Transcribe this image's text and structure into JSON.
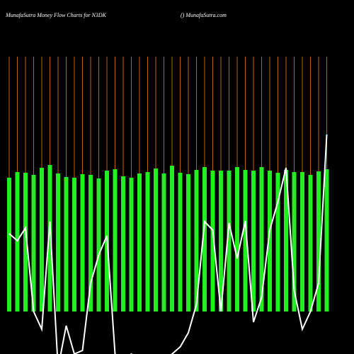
{
  "chart_data": {
    "type": "bar-line",
    "title": "MunafaSutra  Money Flow  Charts for N3DK",
    "subtitle": "() MunafaSutra.com",
    "categories": [
      null,
      null,
      null,
      null,
      null,
      null,
      null,
      null,
      null,
      null,
      null,
      null,
      null,
      null,
      null,
      null,
      null,
      null,
      null,
      null,
      null,
      null,
      null,
      null,
      null,
      null,
      null,
      null,
      null,
      null,
      null,
      null,
      null,
      null,
      null,
      null,
      null,
      null,
      null,
      null
    ],
    "ylim": [
      -60,
      360
    ],
    "series": [
      {
        "type": "bar",
        "color": "#22ee22",
        "values": [
          189,
          197,
          196,
          193,
          203,
          207,
          195,
          190,
          189,
          194,
          193,
          188,
          199,
          201,
          191,
          189,
          195,
          197,
          202,
          195,
          206,
          196,
          194,
          200,
          204,
          199,
          199,
          199,
          204,
          200,
          199,
          204,
          199,
          196,
          200,
          197,
          197,
          193,
          198,
          201
        ]
      },
      {
        "type": "line",
        "color": "#ffffff",
        "values": [
          110,
          100,
          118,
          0,
          -25,
          127,
          -80,
          -20,
          -60,
          -55,
          40,
          80,
          107,
          -60,
          -70,
          -60,
          -70,
          -65,
          -80,
          -70,
          -60,
          -50,
          -30,
          10,
          127,
          115,
          0,
          125,
          75,
          128,
          -15,
          20,
          115,
          155,
          203,
          30,
          -25,
          0,
          40,
          250
        ]
      }
    ],
    "gridline_color": "#b8660b"
  }
}
